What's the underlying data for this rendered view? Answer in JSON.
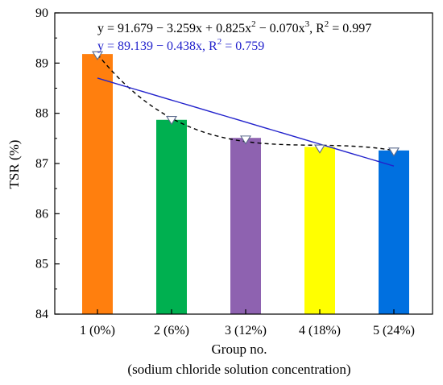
{
  "chart_data": {
    "type": "bar",
    "categories": [
      "1 (0%)",
      "2 (6%)",
      "3 (12%)",
      "4 (18%)",
      "5 (24%)"
    ],
    "values": [
      89.18,
      87.87,
      87.51,
      87.33,
      87.26
    ],
    "xlabel": "Group no.",
    "xlabel_sub": "(sodium chloride solution concentration)",
    "ylabel": "TSR (%)",
    "ylim": [
      84,
      90
    ],
    "yticks": [
      84,
      85,
      86,
      87,
      88,
      89,
      90
    ],
    "grid": false,
    "bar_colors": [
      "#ff7f0e",
      "#00b050",
      "#8e62b0",
      "#ffff00",
      "#0070e0"
    ],
    "markers": {
      "shape": "inverted-triangle",
      "values": [
        89.16,
        87.87,
        87.48,
        87.3,
        87.24
      ]
    },
    "fits": [
      {
        "kind": "cubic",
        "coefficients": [
          91.679,
          -3.259,
          0.825,
          -0.07
        ],
        "style": "dashed",
        "color": "#000000",
        "equation": {
          "lhs": "y = 91.679 − 3.259x + 0.825x",
          "e1": "2",
          "mid1": " − 0.070x",
          "e2": "3",
          "mid2": ", R",
          "e3": "2",
          "tail": " = 0.997"
        }
      },
      {
        "kind": "linear",
        "coefficients": [
          89.139,
          -0.438
        ],
        "style": "solid",
        "color": "#2222cc",
        "equation": {
          "lhs": "y = 89.139 − 0.438x, R",
          "e1": "2",
          "tail": " = 0.759"
        }
      }
    ]
  }
}
